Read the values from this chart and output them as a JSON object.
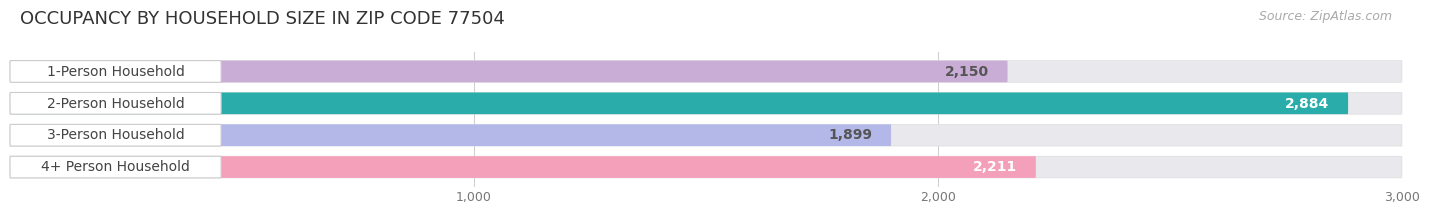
{
  "title": "OCCUPANCY BY HOUSEHOLD SIZE IN ZIP CODE 77504",
  "source": "Source: ZipAtlas.com",
  "categories": [
    "1-Person Household",
    "2-Person Household",
    "3-Person Household",
    "4+ Person Household"
  ],
  "values": [
    2150,
    2884,
    1899,
    2211
  ],
  "bar_colors": [
    "#caadd6",
    "#2aadaa",
    "#b3b8e8",
    "#f4a0ba"
  ],
  "value_colors": [
    "#555555",
    "#ffffff",
    "#555555",
    "#ffffff"
  ],
  "xlim": [
    0,
    3000
  ],
  "xticks": [
    1000,
    2000,
    3000
  ],
  "background_color": "#ffffff",
  "bar_bg_color": "#e8e8ed",
  "title_fontsize": 13,
  "source_fontsize": 9,
  "label_fontsize": 10,
  "value_fontsize": 10
}
